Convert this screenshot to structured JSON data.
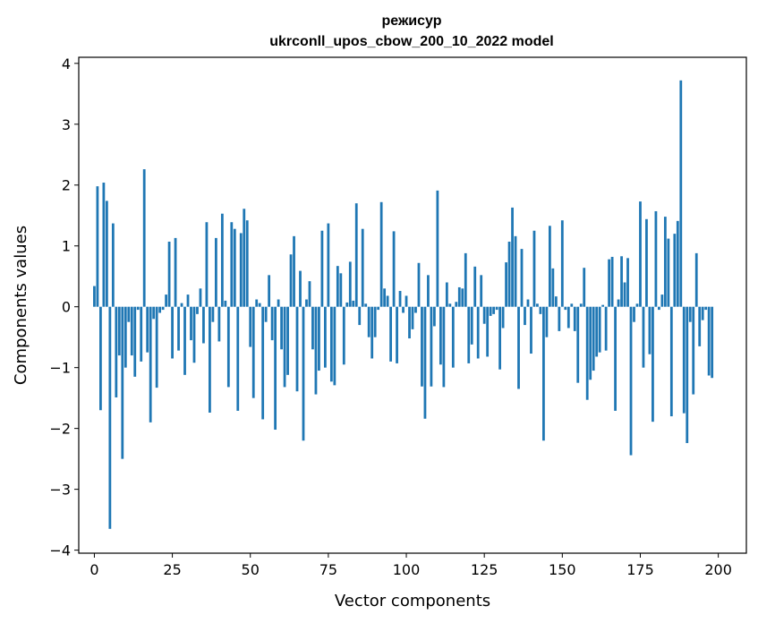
{
  "chart_data": {
    "type": "bar",
    "title_line1": "режисур",
    "title_line2": "ukrconll_upos_cbow_200_10_2022 model",
    "xlabel": "Vector components",
    "ylabel": "Components values",
    "xlim": [
      -5,
      209
    ],
    "ylim": [
      -4.05,
      4.1
    ],
    "x_ticks": [
      0,
      25,
      50,
      75,
      100,
      125,
      150,
      175,
      200
    ],
    "y_ticks": [
      -4,
      -3,
      -2,
      -1,
      0,
      1,
      2,
      3,
      4
    ],
    "y_tick_labels": [
      "−4",
      "−3",
      "−2",
      "−1",
      "0",
      "1",
      "2",
      "3",
      "4"
    ],
    "bar_color": "#1f77b4",
    "grid": false,
    "values": [
      0.34,
      1.98,
      -1.7,
      2.04,
      1.74,
      -3.65,
      1.37,
      -1.49,
      -0.8,
      -2.5,
      -1.0,
      -0.25,
      -0.8,
      -1.15,
      -0.05,
      -0.9,
      2.26,
      -0.75,
      -1.9,
      -0.2,
      -1.33,
      -0.1,
      -0.05,
      0.2,
      1.07,
      -0.85,
      1.13,
      -0.72,
      0.06,
      -1.12,
      0.2,
      -0.55,
      -0.92,
      -0.12,
      0.3,
      -0.6,
      1.39,
      -1.74,
      -0.25,
      1.13,
      -0.57,
      1.53,
      0.1,
      -1.32,
      1.39,
      1.28,
      -1.71,
      1.21,
      1.61,
      1.42,
      -0.66,
      -1.5,
      0.12,
      0.06,
      -1.85,
      -0.25,
      0.52,
      -0.55,
      -2.02,
      0.12,
      -0.7,
      -1.32,
      -1.12,
      0.86,
      1.16,
      -1.39,
      0.59,
      -2.2,
      0.12,
      0.42,
      -0.7,
      -1.44,
      -1.05,
      1.25,
      -1.0,
      1.37,
      -1.23,
      -1.29,
      0.67,
      0.55,
      -0.95,
      0.07,
      0.74,
      0.1,
      1.7,
      -0.3,
      1.28,
      0.05,
      -0.5,
      -0.85,
      -0.5,
      -0.05,
      1.72,
      0.3,
      0.18,
      -0.9,
      1.24,
      -0.93,
      0.26,
      -0.1,
      0.18,
      -0.52,
      -0.37,
      -0.1,
      0.72,
      -1.31,
      -1.84,
      0.52,
      -1.31,
      -0.32,
      1.91,
      -0.95,
      -1.32,
      0.4,
      0.05,
      -1.0,
      0.08,
      0.32,
      0.3,
      0.88,
      -0.93,
      -0.62,
      0.66,
      -0.85,
      0.52,
      -0.28,
      -0.82,
      -0.15,
      -0.12,
      -0.05,
      -1.03,
      -0.35,
      0.73,
      1.07,
      1.63,
      1.16,
      -1.35,
      0.95,
      -0.3,
      0.12,
      -0.77,
      1.25,
      0.05,
      -0.12,
      -2.2,
      -0.5,
      1.33,
      0.63,
      0.17,
      -0.4,
      1.42,
      -0.05,
      -0.35,
      0.05,
      -0.4,
      -1.25,
      0.05,
      0.64,
      -1.53,
      -1.2,
      -1.05,
      -0.82,
      -0.75,
      0.03,
      -0.72,
      0.78,
      0.82,
      -1.71,
      0.12,
      0.83,
      0.4,
      0.8,
      -2.44,
      -0.25,
      0.05,
      1.73,
      -1.0,
      1.44,
      -0.78,
      -1.89,
      1.57,
      -0.05,
      0.2,
      1.48,
      1.12,
      -1.8,
      1.2,
      1.41,
      3.72,
      -1.75,
      -2.24,
      -0.25,
      -1.44,
      0.88,
      -0.65,
      -0.22,
      -0.05,
      -1.13,
      -1.17,
      0.0
    ]
  }
}
